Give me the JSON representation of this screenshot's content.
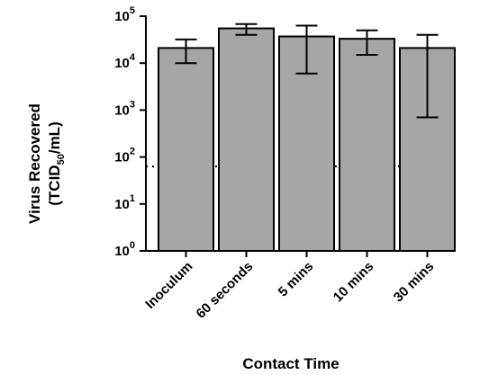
{
  "chart_data": {
    "type": "bar",
    "categories": [
      "Inoculum",
      "60 seconds",
      "5 mins",
      "10 mins",
      "30 mins"
    ],
    "values": [
      21000,
      55000,
      37000,
      33000,
      21000
    ],
    "error_low": [
      10000,
      40000,
      6000,
      15000,
      700
    ],
    "error_high": [
      32000,
      68000,
      63000,
      50000,
      40000
    ],
    "y_scale": "log10",
    "ylim": [
      1,
      100000
    ],
    "y_tick_labels": [
      {
        "base": "10",
        "exp": "0"
      },
      {
        "base": "10",
        "exp": "1"
      },
      {
        "base": "10",
        "exp": "2"
      },
      {
        "base": "10",
        "exp": "3"
      },
      {
        "base": "10",
        "exp": "4"
      },
      {
        "base": "10",
        "exp": "5"
      }
    ],
    "reference_line": {
      "value": 63,
      "style": "dotted"
    },
    "xlabel": "Contact Time",
    "ylabel_line1": "Virus Recovered",
    "ylabel_line2": {
      "prefix": "(TCID",
      "sub": "50",
      "suffix": "/mL)"
    },
    "bar_color": "#a6a6a6",
    "grid": false,
    "legend": "none"
  }
}
